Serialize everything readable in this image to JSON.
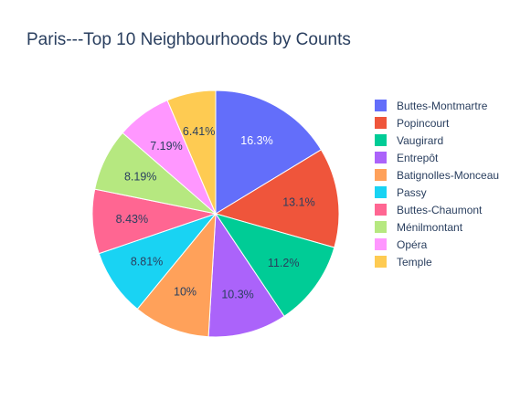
{
  "chart_data": {
    "type": "pie",
    "title": "Paris---Top 10 Neighbourhoods by Counts",
    "legend_position": "right",
    "slices": [
      {
        "label": "Buttes-Montmartre",
        "value": 16.3,
        "text": "16.3%",
        "color": "#636efa",
        "text_color": "#ffffff"
      },
      {
        "label": "Popincourt",
        "value": 13.1,
        "text": "13.1%",
        "color": "#ef553b",
        "text_color": "#2a3f5f"
      },
      {
        "label": "Vaugirard",
        "value": 11.2,
        "text": "11.2%",
        "color": "#00cc96",
        "text_color": "#2a3f5f"
      },
      {
        "label": "Entrepôt",
        "value": 10.3,
        "text": "10.3%",
        "color": "#ab63fa",
        "text_color": "#2a3f5f"
      },
      {
        "label": "Batignolles-Monceau",
        "value": 10.0,
        "text": "10%",
        "color": "#ffa15a",
        "text_color": "#2a3f5f"
      },
      {
        "label": "Passy",
        "value": 8.81,
        "text": "8.81%",
        "color": "#19d3f3",
        "text_color": "#2a3f5f"
      },
      {
        "label": "Buttes-Chaumont",
        "value": 8.43,
        "text": "8.43%",
        "color": "#ff6692",
        "text_color": "#2a3f5f"
      },
      {
        "label": "Ménilmontant",
        "value": 8.19,
        "text": "8.19%",
        "color": "#b6e880",
        "text_color": "#2a3f5f"
      },
      {
        "label": "Opéra",
        "value": 7.19,
        "text": "7.19%",
        "color": "#ff97ff",
        "text_color": "#2a3f5f"
      },
      {
        "label": "Temple",
        "value": 6.41,
        "text": "6.41%",
        "color": "#fecb52",
        "text_color": "#2a3f5f"
      }
    ]
  }
}
